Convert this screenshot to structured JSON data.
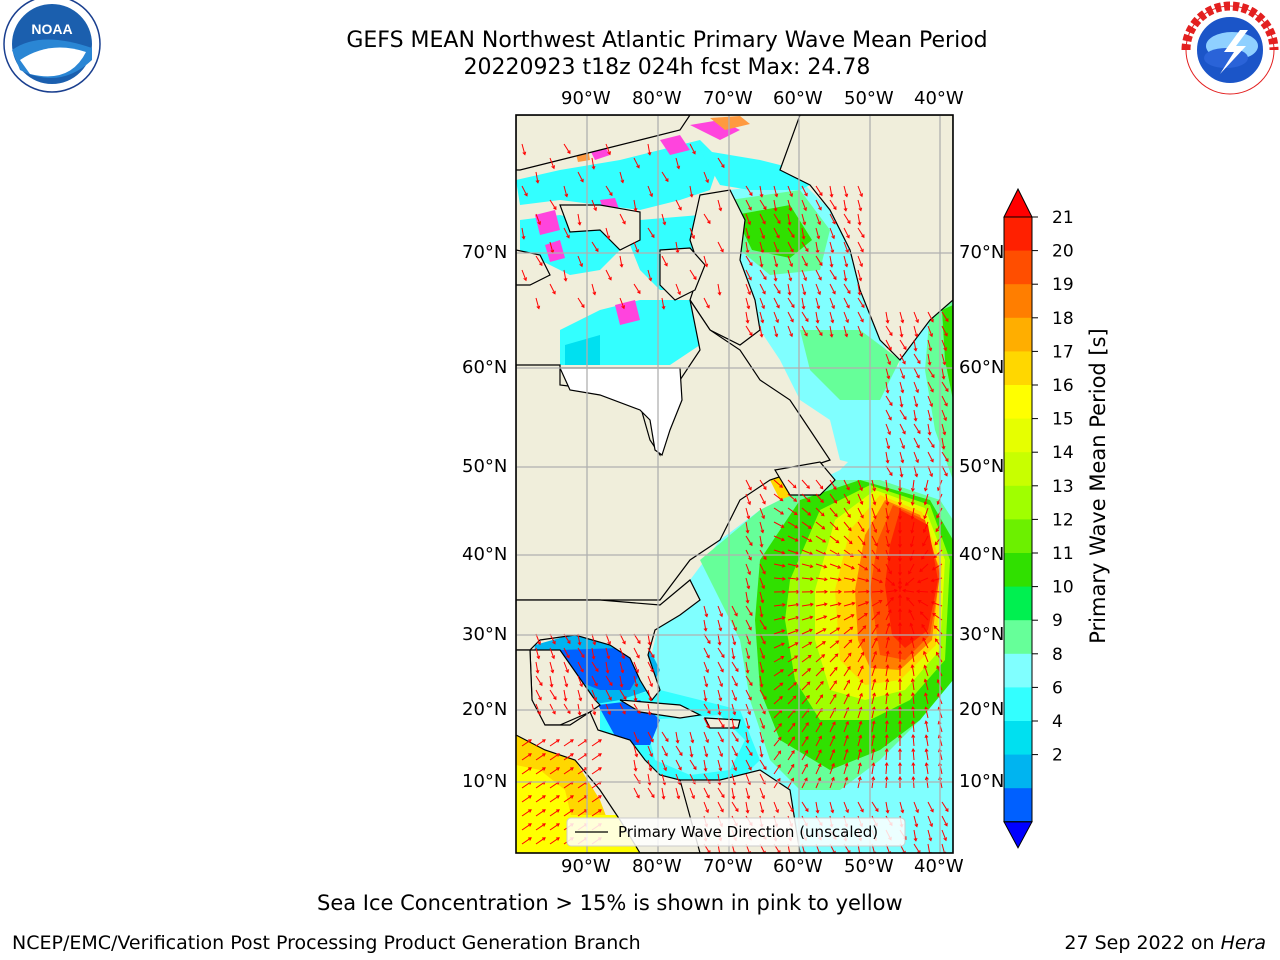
{
  "title": {
    "line1": "GEFS MEAN Northwest Atlantic Primary Wave Mean Period",
    "line2": "20220923 t18z 024h fcst   Max: 24.78"
  },
  "logos": {
    "left": {
      "text": "NOAA",
      "ring": "NATIONAL OCEANIC AND ATMOSPHERIC ADMINISTRATION · U.S. DEPARTMENT OF COMMERCE"
    },
    "right": {
      "ring": "NATIONAL WEATHER SERVICE"
    }
  },
  "axes": {
    "lon_labels": [
      "90°W",
      "80°W",
      "70°W",
      "60°W",
      "50°W",
      "40°W"
    ],
    "lat_labels": [
      "70°N",
      "60°N",
      "50°N",
      "40°N",
      "30°N",
      "20°N",
      "10°N"
    ]
  },
  "legend": {
    "label": "Primary Wave Direction (unscaled)"
  },
  "colorbar": {
    "label": "Primary Wave Mean Period [s]",
    "ticks": [
      "21",
      "20",
      "19",
      "18",
      "17",
      "16",
      "15",
      "14",
      "13",
      "12",
      "11",
      "10",
      "9",
      "8",
      "6",
      "4",
      "2"
    ],
    "colors": [
      "#ff2000",
      "#ff4e00",
      "#ff7e00",
      "#ffae00",
      "#ffd700",
      "#ffff00",
      "#e6ff00",
      "#c8ff00",
      "#a0ff00",
      "#6cf000",
      "#30e000",
      "#00f050",
      "#66ff99",
      "#80ffff",
      "#33ffff",
      "#00e0f0",
      "#00b4f0",
      "#0060ff"
    ],
    "extend_top": "#ff0000",
    "extend_bottom": "#0000ff"
  },
  "notes": {
    "sea_ice": "Sea Ice Concentration > 15% is shown in pink to yellow",
    "branch": "NCEP/EMC/Verification Post Processing Product Generation Branch",
    "date": "27 Sep 2022 on",
    "host": "Hera"
  },
  "colors": {
    "land": "#f0eedb",
    "grid": "#b0b0b0",
    "arrow": "#ff0000"
  }
}
